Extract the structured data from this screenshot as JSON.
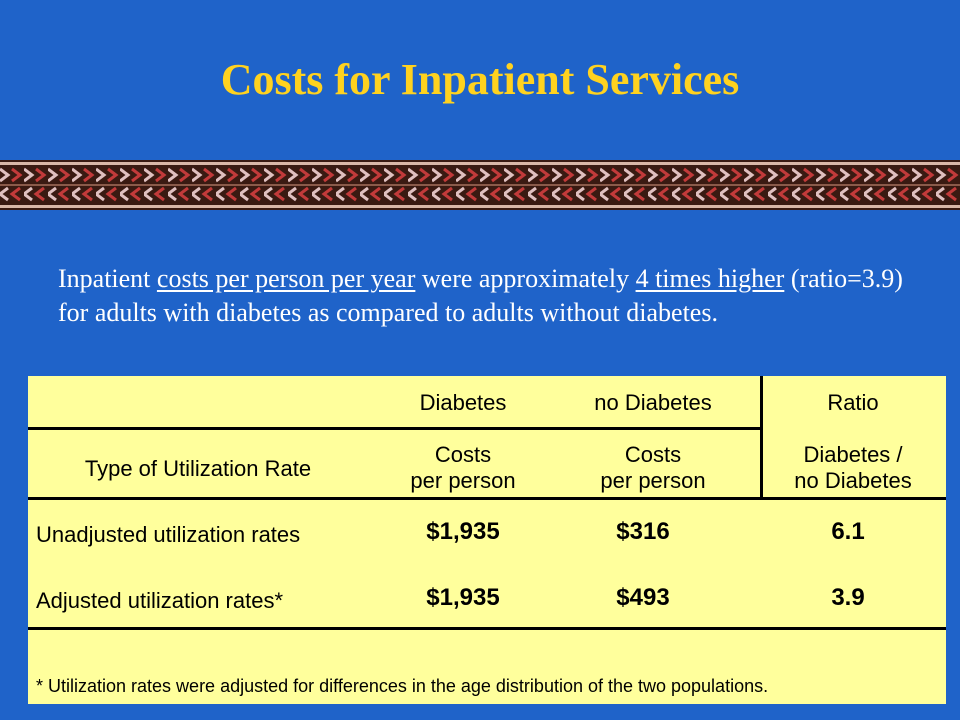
{
  "slide": {
    "title": "Costs for Inpatient Services",
    "intro": {
      "t1": "Inpatient ",
      "u1": "costs per person per year",
      "t2": " were approximately ",
      "u2": "4 times higher",
      "t3": " (ratio=3.9) for adults with diabetes as compared to adults without diabetes."
    }
  },
  "table": {
    "header1": {
      "diabetes": "Diabetes",
      "no_diabetes": "no Diabetes",
      "ratio": "Ratio"
    },
    "header2": {
      "type": "Type of Utilization Rate",
      "diabetes_l1": "Costs",
      "diabetes_l2": "per person",
      "no_diabetes_l1": "Costs",
      "no_diabetes_l2": "per person",
      "ratio_l1": "Diabetes /",
      "ratio_l2": "no Diabetes"
    },
    "rows": [
      {
        "label": "Unadjusted utilization rates",
        "diabetes": "$1,935",
        "no_diabetes": "$316",
        "ratio": "6.1"
      },
      {
        "label": "Adjusted utilization rates*",
        "diabetes": "$1,935",
        "no_diabetes": "$493",
        "ratio": "3.9"
      }
    ],
    "footnote": "* Utilization rates were adjusted for differences in the age distribution of the two populations."
  },
  "colors": {
    "background": "#1f63c9",
    "title": "#ffd21f",
    "table_fill": "#ffff9c"
  }
}
